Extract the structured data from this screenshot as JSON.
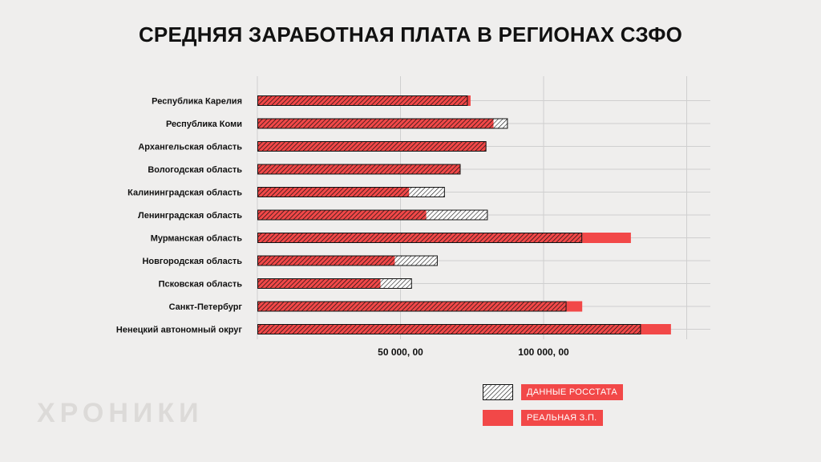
{
  "title": "СРЕДНЯЯ ЗАРАБОТНАЯ ПЛАТА В РЕГИОНАХ СЗФО",
  "brand": "ХРОНИКИ",
  "colors": {
    "real": "#f24848",
    "rosstat_hatch": "#111111",
    "rosstat_bg": "#ffffff"
  },
  "legend": [
    {
      "label": "ДАННЫЕ РОССТАТА",
      "swatch": "hatch-white"
    },
    {
      "label": "РЕАЛЬНАЯ З.П.",
      "swatch": "solid-red"
    }
  ],
  "chart_data": {
    "type": "bar",
    "orientation": "horizontal",
    "title": "СРЕДНЯЯ ЗАРАБОТНАЯ ПЛАТА В РЕГИОНАХ СЗФО",
    "categories": [
      "Республика Карелия",
      "Республика Коми",
      "Архангельская область",
      "Вологодская область",
      "Калининградская область",
      "Ленинградская область",
      "Мурманская область",
      "Новгородская область",
      "Псковская область",
      "Санкт-Петербург",
      "Ненецкий автономный округ"
    ],
    "series": [
      {
        "name": "ДАННЫЕ РОССТАТА",
        "values": [
          73500,
          87500,
          80000,
          71000,
          65500,
          80500,
          113500,
          63000,
          54000,
          108000,
          134000
        ]
      },
      {
        "name": "РЕАЛЬНАЯ З.П.",
        "values": [
          74500,
          82500,
          80000,
          71000,
          53000,
          59000,
          130500,
          48000,
          43000,
          113500,
          144500
        ]
      }
    ],
    "x_ticks": [
      {
        "value": 50000,
        "label": "50 000, 00"
      },
      {
        "value": 100000,
        "label": "100 000, 00"
      }
    ],
    "xlim": [
      0,
      150000
    ],
    "grid": true,
    "legend_position": "bottom-right"
  }
}
